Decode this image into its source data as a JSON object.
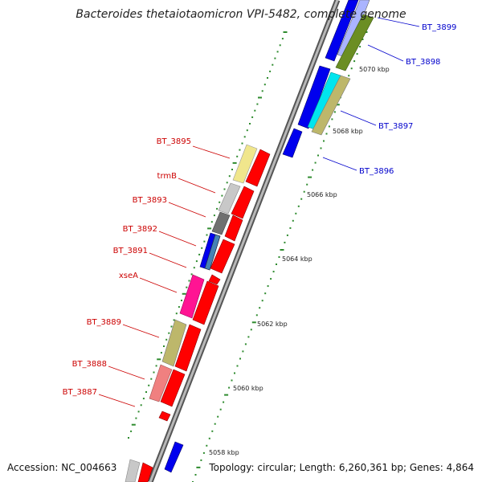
{
  "title": "Bacteroides thetaiotaomicron VPI-5482, complete genome",
  "accession": "Accession: NC_004663",
  "topology": "Topology: circular; Length: 6,260,361 bp; Genes: 4,864",
  "scale_labels": [
    "5070 kbp",
    "5068 kbp",
    "5066 kbp",
    "5064 kbp",
    "5062 kbp",
    "5060 kbp",
    "5058 kbp"
  ],
  "colors": {
    "forward_strand": "#ff0000",
    "reverse_strand": "#0000ff",
    "right_labels": "#0000cc",
    "left_labels": "#cc0000",
    "scale_dots": "#2e8b2e",
    "backbone": "#8a8a8a"
  },
  "genes_right": [
    {
      "name": "BT_3899",
      "cog_color": "#aab4ff"
    },
    {
      "name": "BT_3898",
      "cog_color": "#6b8e23"
    },
    {
      "name": "BT_3897",
      "cog_color": "#00e5ee"
    },
    {
      "name": "BT_3896",
      "cog_color": "#0000ff"
    }
  ],
  "genes_left": [
    {
      "name": "BT_3895",
      "cog_color": "#f0e68c"
    },
    {
      "name": "trmB",
      "cog_color": "#c8c8c8"
    },
    {
      "name": "BT_3893",
      "cog_color": "#707070"
    },
    {
      "name": "BT_3892",
      "cog_color": "#4682b4"
    },
    {
      "name": "BT_3891",
      "cog_color": "#ff0000"
    },
    {
      "name": "xseA",
      "cog_color": "#ff1493"
    },
    {
      "name": "BT_3889",
      "cog_color": "#bdb76b"
    },
    {
      "name": "BT_3888",
      "cog_color": "#f08080"
    },
    {
      "name": "BT_3887",
      "cog_color": "#ff0000"
    }
  ]
}
